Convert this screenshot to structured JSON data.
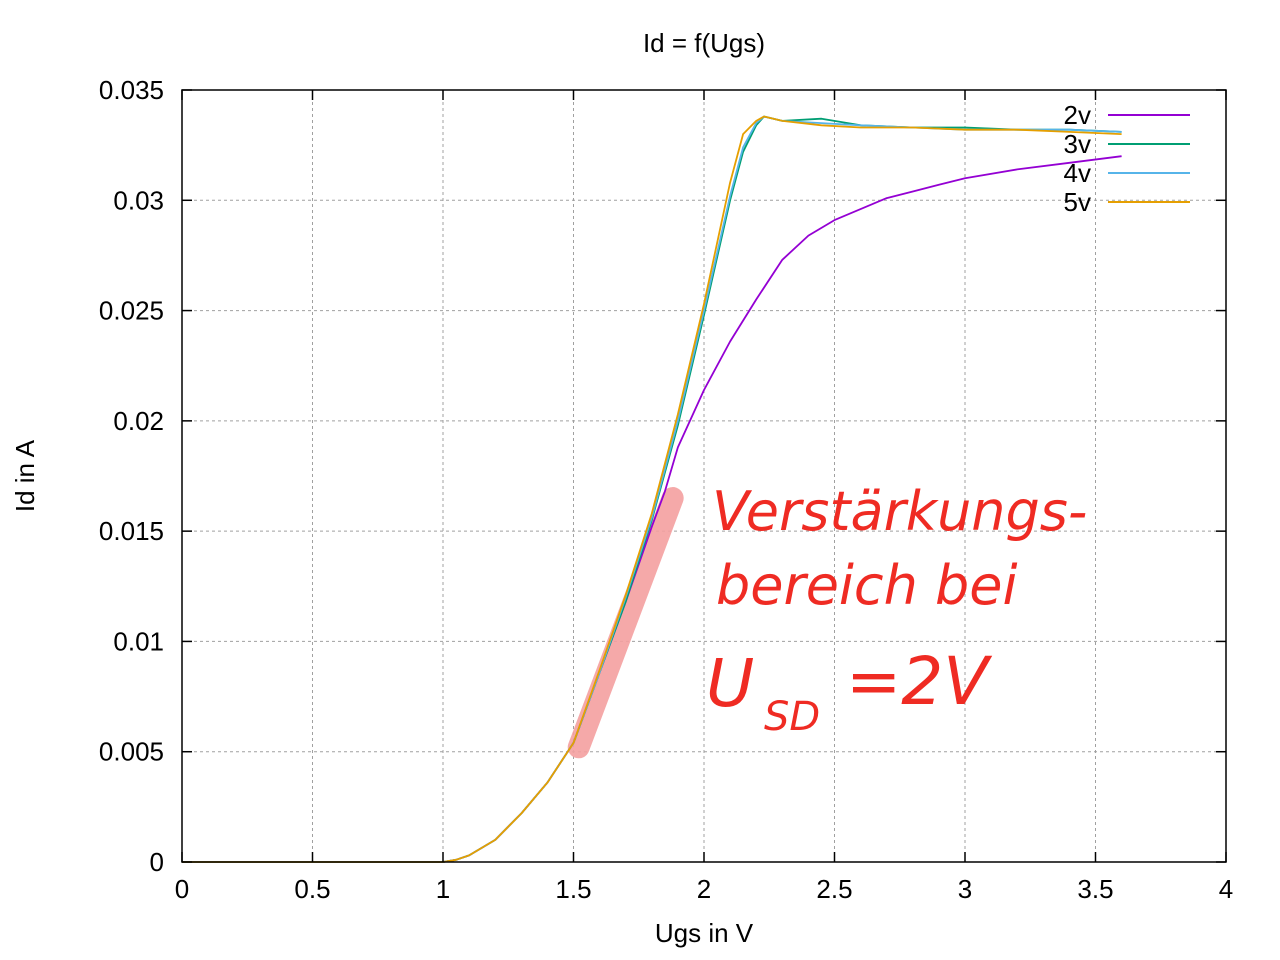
{
  "chart_data": {
    "type": "line",
    "title": "Id = f(Ugs)",
    "xlabel": "Ugs in V",
    "ylabel": "Id in A",
    "xlim": [
      0,
      4
    ],
    "ylim": [
      0,
      0.035
    ],
    "xticks": [
      "0",
      "0.5",
      "1",
      "1.5",
      "2",
      "2.5",
      "3",
      "3.5",
      "4"
    ],
    "yticks": [
      "0",
      "0.005",
      "0.01",
      "0.015",
      "0.02",
      "0.025",
      "0.03",
      "0.035"
    ],
    "grid": true,
    "legend_position": "top-right",
    "series": [
      {
        "name": "2v",
        "color": "#9400d3",
        "x": [
          0,
          1.0,
          1.05,
          1.1,
          1.2,
          1.3,
          1.4,
          1.5,
          1.6,
          1.7,
          1.8,
          1.85,
          1.9,
          2.0,
          2.1,
          2.2,
          2.3,
          2.4,
          2.5,
          2.6,
          2.7,
          2.8,
          2.9,
          3.0,
          3.2,
          3.4,
          3.6
        ],
        "y": [
          0,
          0,
          0.0001,
          0.0003,
          0.001,
          0.0022,
          0.0036,
          0.0054,
          0.0086,
          0.0118,
          0.0152,
          0.0168,
          0.0188,
          0.0214,
          0.0236,
          0.0255,
          0.0273,
          0.0284,
          0.0291,
          0.0296,
          0.0301,
          0.0304,
          0.0307,
          0.031,
          0.0314,
          0.0317,
          0.032
        ]
      },
      {
        "name": "3v",
        "color": "#009e73",
        "x": [
          0,
          1.0,
          1.05,
          1.1,
          1.2,
          1.3,
          1.4,
          1.5,
          1.6,
          1.7,
          1.8,
          1.9,
          2.0,
          2.1,
          2.15,
          2.2,
          2.23,
          2.3,
          2.45,
          2.6,
          2.8,
          3.0,
          3.2,
          3.4,
          3.6
        ],
        "y": [
          0,
          0,
          0.0001,
          0.0003,
          0.001,
          0.0022,
          0.0036,
          0.0054,
          0.0086,
          0.0118,
          0.0155,
          0.0198,
          0.0248,
          0.03,
          0.0322,
          0.0334,
          0.0338,
          0.0336,
          0.0337,
          0.0334,
          0.0333,
          0.0333,
          0.0332,
          0.0332,
          0.0331
        ]
      },
      {
        "name": "4v",
        "color": "#56b4e9",
        "x": [
          0,
          1.0,
          1.05,
          1.1,
          1.2,
          1.3,
          1.4,
          1.5,
          1.6,
          1.7,
          1.8,
          1.9,
          2.0,
          2.1,
          2.15,
          2.2,
          2.23,
          2.3,
          2.45,
          2.6,
          2.8,
          3.0,
          3.2,
          3.4,
          3.6
        ],
        "y": [
          0,
          0,
          0.0001,
          0.0003,
          0.001,
          0.0022,
          0.0036,
          0.0054,
          0.0086,
          0.012,
          0.0156,
          0.02,
          0.025,
          0.0302,
          0.0324,
          0.0335,
          0.0338,
          0.0336,
          0.0335,
          0.0334,
          0.0333,
          0.0332,
          0.0332,
          0.0332,
          0.0331
        ]
      },
      {
        "name": "5v",
        "color": "#e69f00",
        "x": [
          0,
          1.0,
          1.05,
          1.1,
          1.2,
          1.3,
          1.4,
          1.5,
          1.6,
          1.7,
          1.8,
          1.9,
          2.0,
          2.1,
          2.15,
          2.2,
          2.23,
          2.3,
          2.45,
          2.6,
          2.8,
          3.0,
          3.2,
          3.4,
          3.6
        ],
        "y": [
          0,
          0,
          0.0001,
          0.0003,
          0.001,
          0.0022,
          0.0036,
          0.0054,
          0.0087,
          0.0121,
          0.0158,
          0.0203,
          0.0253,
          0.0308,
          0.033,
          0.0336,
          0.0338,
          0.0336,
          0.0334,
          0.0333,
          0.0333,
          0.0332,
          0.0332,
          0.0331,
          0.033
        ]
      }
    ],
    "annotations": [
      {
        "kind": "highlight",
        "color": "#f4a0a0",
        "x": [
          1.52,
          1.88
        ],
        "y": [
          0.0052,
          0.0165
        ]
      },
      {
        "kind": "handwriting",
        "color": "#ef2b23",
        "lines": [
          "Verstärkungs-",
          "bereich bei",
          "U",
          "SD",
          "=2V"
        ]
      }
    ]
  }
}
